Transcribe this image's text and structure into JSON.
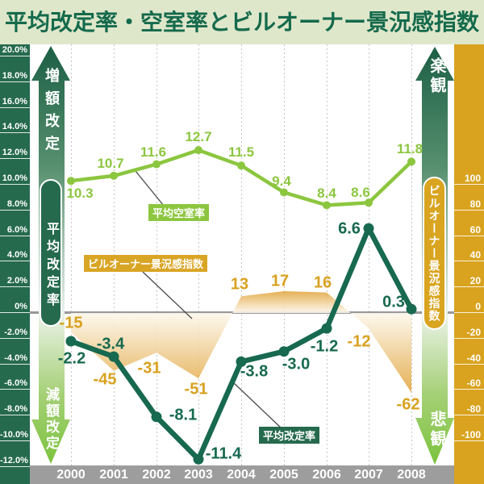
{
  "title": "平均改定率・空室率とビルオーナー景況感指数",
  "left_axis": {
    "labels": [
      "20.0%",
      "18.0%",
      "16.0%",
      "14.0%",
      "12.0%",
      "10.0%",
      "8.0%",
      "6.0%",
      "4.0%",
      "2.0%",
      "0%",
      "-2.0%",
      "-4.0%",
      "-6.0%",
      "-8.0%",
      "-10.0%",
      "-12.0%"
    ],
    "values": [
      20,
      18,
      16,
      14,
      12,
      10,
      8,
      6,
      4,
      2,
      0,
      -2,
      -4,
      -6,
      -8,
      -10,
      -12
    ]
  },
  "right_axis": {
    "labels": [
      "100",
      "80",
      "60",
      "40",
      "20",
      "0",
      "-20",
      "-40",
      "-60",
      "-80",
      "-100"
    ],
    "values": [
      100,
      80,
      60,
      40,
      20,
      0,
      -20,
      -40,
      -60,
      -80,
      -100
    ]
  },
  "annotations": {
    "increase_arrow": "増額改定",
    "decrease_arrow": "減額改定",
    "optimistic_arrow": "楽観",
    "pessimistic_arrow": "悲観",
    "left_capsule": "平均改定率",
    "right_capsule": "ビルオーナー景況感指数",
    "vacancy_legend": "平均空室率",
    "revision_legend": "平均改定率",
    "sentiment_legend": "ビルオーナー景況感指数"
  },
  "colors": {
    "title_bg": "#dfe7cb",
    "title_text": "#156a4c",
    "left_strip": "#266a4e",
    "right_strip": "#d9a31f",
    "vacancy_line": "#8cc63f",
    "revision_line": "#17694f",
    "sentiment_gold": "#e1a53c",
    "sentiment_label": "#d8a11f",
    "year_band": "#9d9d9d",
    "zero_line": "#999999",
    "arrow_dark_green": "#1c5f45",
    "arrow_light_green": "#7cc33e"
  },
  "chart_data": {
    "type": "line",
    "categories": [
      "2000",
      "2001",
      "2002",
      "2003",
      "2004",
      "2005",
      "2006",
      "2007",
      "2008"
    ],
    "series": [
      {
        "name": "平均空室率",
        "axis": "left",
        "unit": "%",
        "values": [
          10.3,
          10.7,
          11.6,
          12.7,
          11.5,
          9.4,
          8.4,
          8.6,
          11.8
        ],
        "labels": [
          "10.3",
          "10.7",
          "11.6",
          "12.7",
          "11.5",
          "9.4",
          "8.4",
          "8.6",
          "11.8"
        ]
      },
      {
        "name": "平均改定率",
        "axis": "left",
        "unit": "%",
        "values": [
          -2.2,
          -3.4,
          -8.1,
          -11.4,
          -3.8,
          -3.0,
          -1.2,
          6.6,
          0.3
        ],
        "labels": [
          "-2.2",
          "-3.4",
          "-8.1",
          "-11.4",
          "-3.8",
          "-3.0",
          "-1.2",
          "6.6",
          "0.3"
        ]
      },
      {
        "name": "ビルオーナー景況感指数",
        "axis": "right",
        "unit": "index",
        "style": "area",
        "values": [
          -15,
          -45,
          -31,
          -51,
          13,
          17,
          16,
          -12,
          -62
        ],
        "labels": [
          "-15",
          "-45",
          "-31",
          "-51",
          "13",
          "17",
          "16",
          "-12",
          "-62"
        ]
      }
    ],
    "left_axis_range": [
      -12,
      20
    ],
    "right_axis_range": [
      -100,
      100
    ],
    "grid": "vertical-dotted",
    "legend_position": "inline-callouts"
  }
}
